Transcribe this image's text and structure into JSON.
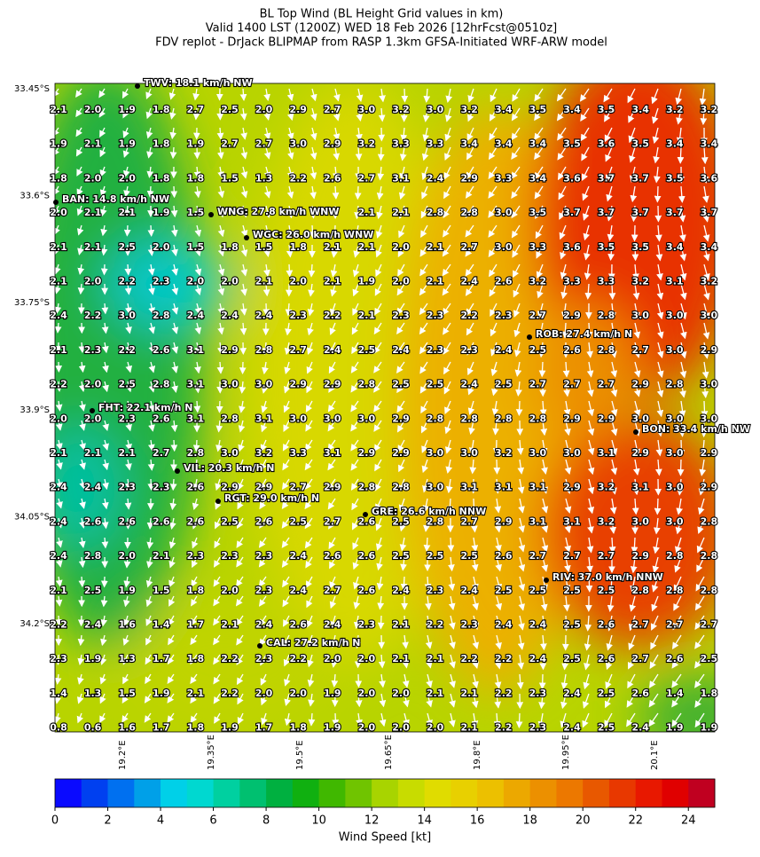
{
  "title_lines": [
    "BL Top Wind (BL Height Grid values in km)",
    "Valid 1400 LST (1200Z) WED 18 Feb 2026 [12hrFcst@0510z]",
    "FDV replot - DrJack BLIPMAP from RASP 1.3km GFSA-Initiated WRF-ARW model"
  ],
  "lat_labels": [
    "33.45°S",
    "33.6°S",
    "33.75°S",
    "33.9°S",
    "34.05°S",
    "34.2°S"
  ],
  "lon_labels": [
    "19.2°E",
    "19.35°E",
    "19.5°E",
    "19.65°E",
    "19.8°E",
    "19.95°E",
    "20.1°E"
  ],
  "grid_values": [
    [
      "2.1",
      "2.0",
      "1.9",
      "1.8",
      "2.7",
      "2.5",
      "2.0",
      "2.9",
      "2.7",
      "3.0",
      "3.2",
      "3.0",
      "3.2",
      "3.4",
      "3.5",
      "3.4",
      "3.5",
      "3.4",
      "3.2",
      "3.2"
    ],
    [
      "1.9",
      "2.1",
      "1.9",
      "1.8",
      "1.9",
      "2.7",
      "2.7",
      "3.0",
      "2.9",
      "3.2",
      "3.3",
      "3.3",
      "3.4",
      "3.4",
      "3.4",
      "3.5",
      "3.6",
      "3.5",
      "3.4",
      "3.4"
    ],
    [
      "1.8",
      "2.0",
      "2.0",
      "1.8",
      "1.8",
      "1.5",
      "1.3",
      "2.2",
      "2.6",
      "2.7",
      "3.1",
      "2.4",
      "2.9",
      "3.3",
      "3.4",
      "3.6",
      "3.7",
      "3.7",
      "3.5",
      "3.6"
    ],
    [
      "2.0",
      "2.1",
      "2.1",
      "1.9",
      "1.5",
      null,
      null,
      null,
      null,
      "2.1",
      "2.1",
      "2.8",
      "2.8",
      "3.0",
      "3.5",
      "3.7",
      "3.7",
      "3.7",
      "3.7",
      "3.7"
    ],
    [
      "2.1",
      "2.1",
      "2.5",
      "2.0",
      "1.5",
      "1.8",
      "1.5",
      "1.8",
      "2.1",
      "2.1",
      "2.0",
      "2.1",
      "2.7",
      "3.0",
      "3.3",
      "3.6",
      "3.5",
      "3.5",
      "3.4",
      "3.4"
    ],
    [
      "2.1",
      "2.0",
      "2.2",
      "2.3",
      "2.0",
      "2.0",
      "2.1",
      "2.0",
      "2.1",
      "1.9",
      "2.0",
      "2.1",
      "2.4",
      "2.6",
      "3.2",
      "3.3",
      "3.3",
      "3.2",
      "3.1",
      "3.2"
    ],
    [
      "2.4",
      "2.2",
      "3.0",
      "2.8",
      "2.4",
      "2.4",
      "2.4",
      "2.3",
      "2.2",
      "2.1",
      "2.3",
      "2.3",
      "2.2",
      "2.3",
      "2.7",
      "2.9",
      "2.8",
      "3.0",
      "3.0",
      "3.0"
    ],
    [
      "2.1",
      "2.3",
      "2.2",
      "2.6",
      "3.1",
      "2.9",
      "2.8",
      "2.7",
      "2.4",
      "2.5",
      "2.4",
      "2.3",
      "2.3",
      "2.4",
      "2.5",
      "2.6",
      "2.8",
      "2.7",
      "3.0",
      "2.9"
    ],
    [
      "2.2",
      "2.0",
      "2.5",
      "2.8",
      "3.1",
      "3.0",
      "3.0",
      "2.9",
      "2.9",
      "2.8",
      "2.5",
      "2.5",
      "2.4",
      "2.5",
      "2.7",
      "2.7",
      "2.7",
      "2.9",
      "2.8",
      "3.0"
    ],
    [
      "2.0",
      "2.0",
      "2.3",
      "2.6",
      "3.1",
      "2.8",
      "3.1",
      "3.0",
      "3.0",
      "3.0",
      "2.9",
      "2.8",
      "2.8",
      "2.8",
      "2.8",
      "2.9",
      "2.9",
      "3.0",
      "3.0",
      "3.0"
    ],
    [
      "2.1",
      "2.1",
      "2.1",
      "2.7",
      "2.8",
      "3.0",
      "3.2",
      "3.3",
      "3.1",
      "2.9",
      "2.9",
      "3.0",
      "3.0",
      "3.2",
      "3.0",
      "3.0",
      "3.1",
      "2.9",
      "3.0",
      "2.9"
    ],
    [
      "2.4",
      "2.4",
      "2.3",
      "2.3",
      "2.6",
      "2.9",
      "2.9",
      "2.7",
      "2.9",
      "2.8",
      "2.8",
      "3.0",
      "3.1",
      "3.1",
      "3.1",
      "2.9",
      "3.2",
      "3.1",
      "3.0",
      "2.9"
    ],
    [
      "2.4",
      "2.6",
      "2.6",
      "2.6",
      "2.6",
      "2.5",
      "2.6",
      "2.5",
      "2.7",
      "2.6",
      "2.5",
      "2.8",
      "2.7",
      "2.9",
      "3.1",
      "3.1",
      "3.2",
      "3.0",
      "3.0",
      "2.8"
    ],
    [
      "2.4",
      "2.8",
      "2.0",
      "2.1",
      "2.3",
      "2.3",
      "2.3",
      "2.4",
      "2.6",
      "2.6",
      "2.5",
      "2.5",
      "2.5",
      "2.6",
      "2.7",
      "2.7",
      "2.7",
      "2.9",
      "2.8",
      "2.8"
    ],
    [
      "2.1",
      "2.5",
      "1.9",
      "1.5",
      "1.8",
      "2.0",
      "2.3",
      "2.4",
      "2.7",
      "2.6",
      "2.4",
      "2.3",
      "2.4",
      "2.5",
      "2.5",
      "2.5",
      "2.5",
      "2.8",
      "2.8",
      "2.8"
    ],
    [
      "2.2",
      "2.4",
      "1.6",
      "1.4",
      "1.7",
      "2.1",
      "2.4",
      "2.6",
      "2.4",
      "2.3",
      "2.1",
      "2.2",
      "2.3",
      "2.4",
      "2.4",
      "2.5",
      "2.6",
      "2.7",
      "2.7",
      "2.7"
    ],
    [
      "2.3",
      "1.9",
      "1.3",
      "1.7",
      "1.8",
      "2.2",
      "2.3",
      "2.2",
      "2.0",
      "2.0",
      "2.1",
      "2.1",
      "2.2",
      "2.2",
      "2.4",
      "2.5",
      "2.6",
      "2.7",
      "2.6",
      "2.5"
    ],
    [
      "1.4",
      "1.3",
      "1.5",
      "1.9",
      "2.1",
      "2.2",
      "2.0",
      "2.0",
      "1.9",
      "2.0",
      "2.0",
      "2.1",
      "2.1",
      "2.2",
      "2.3",
      "2.4",
      "2.5",
      "2.6",
      "1.4",
      "1.8"
    ],
    [
      "0.8",
      "0.6",
      "1.6",
      "1.7",
      "1.8",
      "1.9",
      "1.7",
      "1.8",
      "1.9",
      "2.0",
      "2.0",
      "2.0",
      "2.1",
      "2.2",
      "2.3",
      "2.4",
      "2.5",
      "2.4",
      "1.9",
      "1.9"
    ]
  ],
  "stations": [
    "TWV: 18.1 km/h NW",
    "BAN: 14.8 km/h NW",
    "WNG: 27.8 km/h WNW",
    "WGC: 26.0 km/h WNW",
    "ROB: 27.4 km/h N",
    "FHT: 22.1 km/h N",
    "BON: 33.4 km/h NW",
    "VIL: 20.3 km/h N",
    "RGT: 29.0 km/h N",
    "GRE: 26.6 km/h NNW",
    "RIV: 37.0 km/h NNW",
    "CAL: 27.2 km/h N"
  ],
  "colorbar": {
    "label": "Wind Speed [kt]",
    "range": [
      0,
      25
    ],
    "ticks": [
      0,
      2,
      4,
      6,
      8,
      10,
      12,
      14,
      16,
      18,
      20,
      22,
      24
    ],
    "colors": [
      "#0a0aff",
      "#0040f0",
      "#0070f0",
      "#00a0e8",
      "#00d0e8",
      "#00d8d0",
      "#00d0a0",
      "#00c070",
      "#00b040",
      "#10b010",
      "#40b800",
      "#70c400",
      "#a8d400",
      "#c8dc00",
      "#e0dc00",
      "#e8d000",
      "#ecc000",
      "#eca800",
      "#ec9000",
      "#ec7800",
      "#e85800",
      "#e83800",
      "#e81800",
      "#e00000",
      "#c00020"
    ]
  }
}
